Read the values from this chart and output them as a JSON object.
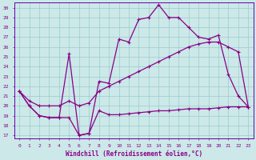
{
  "xlabel": "Windchill (Refroidissement éolien,°C)",
  "bg_color": "#cce8e8",
  "line_color": "#880088",
  "grid_color": "#99cccc",
  "spine_color": "#6600aa",
  "xlim": [
    -0.5,
    23.5
  ],
  "ylim": [
    16.7,
    30.5
  ],
  "yticks": [
    17,
    18,
    19,
    20,
    21,
    22,
    23,
    24,
    25,
    26,
    27,
    28,
    29,
    30
  ],
  "xticks": [
    0,
    1,
    2,
    3,
    4,
    5,
    6,
    7,
    8,
    9,
    10,
    11,
    12,
    13,
    14,
    15,
    16,
    17,
    18,
    19,
    20,
    21,
    22,
    23
  ],
  "line1_x": [
    0,
    1,
    2,
    3,
    4,
    5,
    6,
    7,
    8,
    9,
    10,
    11,
    12,
    13,
    14,
    15,
    16,
    17,
    18,
    19,
    20,
    21,
    22,
    23
  ],
  "line1_y": [
    21.5,
    20.0,
    19.0,
    18.8,
    18.8,
    18.8,
    17.0,
    17.2,
    19.5,
    19.1,
    19.1,
    19.2,
    19.3,
    19.4,
    19.5,
    19.5,
    19.6,
    19.7,
    19.7,
    19.7,
    19.8,
    19.9,
    19.9,
    19.9
  ],
  "line2_x": [
    0,
    1,
    2,
    3,
    4,
    5,
    6,
    7,
    8,
    9,
    10,
    11,
    12,
    13,
    14,
    15,
    16,
    17,
    18,
    19,
    20,
    21,
    22,
    23
  ],
  "line2_y": [
    21.5,
    20.0,
    19.0,
    18.8,
    18.8,
    25.3,
    17.0,
    17.2,
    22.5,
    22.3,
    26.8,
    26.5,
    28.8,
    29.0,
    30.3,
    29.0,
    29.0,
    28.0,
    27.0,
    26.8,
    27.2,
    23.2,
    21.0,
    19.9
  ],
  "line3_x": [
    0,
    1,
    2,
    3,
    4,
    5,
    6,
    7,
    8,
    9,
    10,
    11,
    12,
    13,
    14,
    15,
    16,
    17,
    18,
    19,
    20,
    21,
    22,
    23
  ],
  "line3_y": [
    21.5,
    20.5,
    20.0,
    20.0,
    20.0,
    20.5,
    20.0,
    20.3,
    21.5,
    22.0,
    22.5,
    23.0,
    23.5,
    24.0,
    24.5,
    25.0,
    25.5,
    26.0,
    26.3,
    26.5,
    26.5,
    26.0,
    25.5,
    19.9
  ]
}
